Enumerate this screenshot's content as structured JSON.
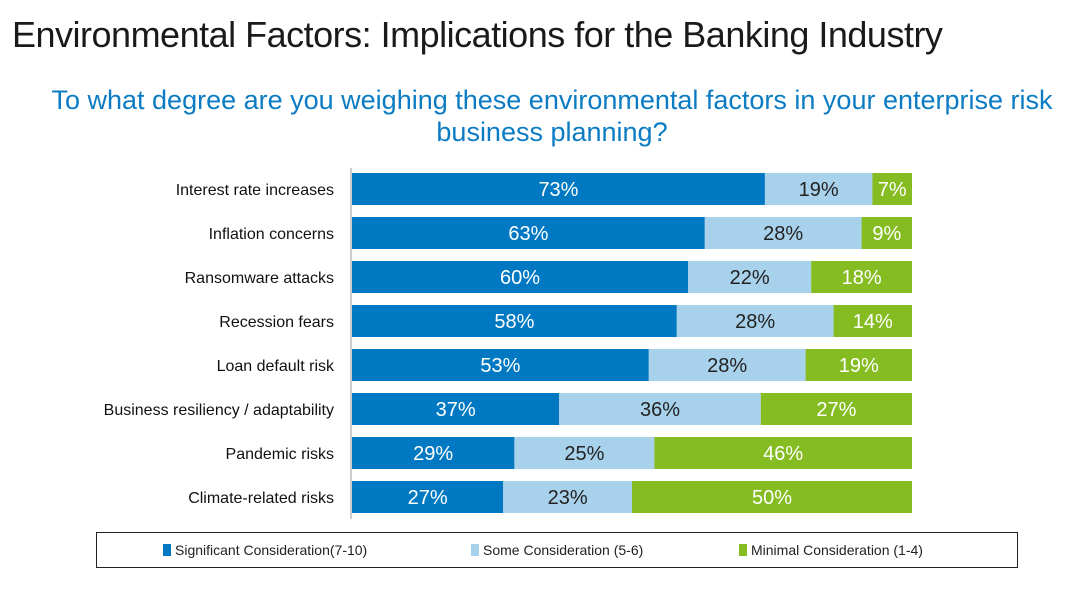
{
  "title": "Environmental Factors: Implications for the Banking Industry",
  "chart_data": {
    "type": "bar",
    "orientation": "horizontal",
    "stacked": true,
    "subtitle": "To what degree are you weighing these environmental factors in your enterprise risk business planning?",
    "categories": [
      "Interest rate increases",
      "Inflation concerns",
      "Ransomware attacks",
      "Recession fears",
      "Loan default risk",
      "Business resiliency / adaptability",
      "Pandemic risks",
      "Climate-related risks"
    ],
    "series": [
      {
        "name": "Significant Consideration(7-10)",
        "color": "#0079c2",
        "values": [
          73,
          63,
          60,
          58,
          53,
          37,
          29,
          27
        ]
      },
      {
        "name": "Some Consideration (5-6)",
        "color": "#a8d1eb",
        "values": [
          19,
          28,
          22,
          28,
          28,
          36,
          25,
          23
        ]
      },
      {
        "name": "Minimal Consideration (1-4)",
        "color": "#84bc22",
        "values": [
          7,
          9,
          18,
          14,
          19,
          27,
          46,
          50
        ]
      }
    ],
    "value_suffix": "%",
    "legend_position": "bottom",
    "grid": false
  }
}
